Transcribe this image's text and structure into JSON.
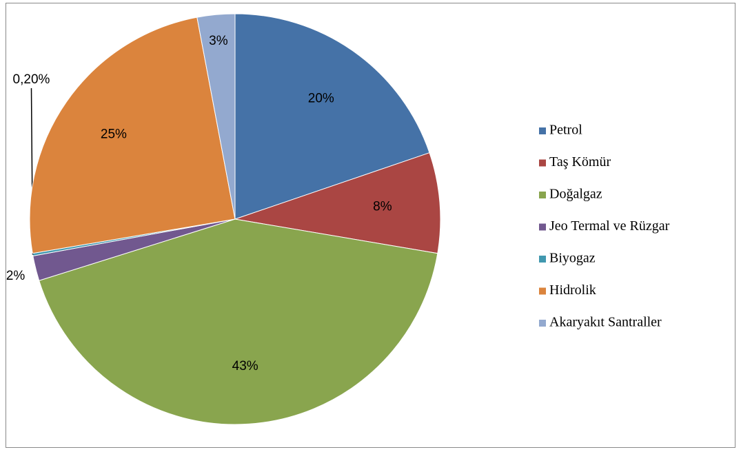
{
  "chart_data": {
    "type": "pie",
    "categories": [
      "Petrol",
      "Taş Kömür",
      "Doğalgaz",
      "Jeo Termal ve Rüzgar",
      "Biyogaz",
      "Hidrolik",
      "Akaryakıt Santraller"
    ],
    "values": [
      20,
      8,
      43,
      2,
      0.2,
      25,
      3
    ],
    "value_labels": [
      "20%",
      "8%",
      "43%",
      "2%",
      "0,20%",
      "25%",
      "3%"
    ],
    "colors": [
      "#4572a7",
      "#aa4643",
      "#89a54e",
      "#71588f",
      "#4198af",
      "#db843d",
      "#93a9cf"
    ],
    "legend": "right"
  }
}
